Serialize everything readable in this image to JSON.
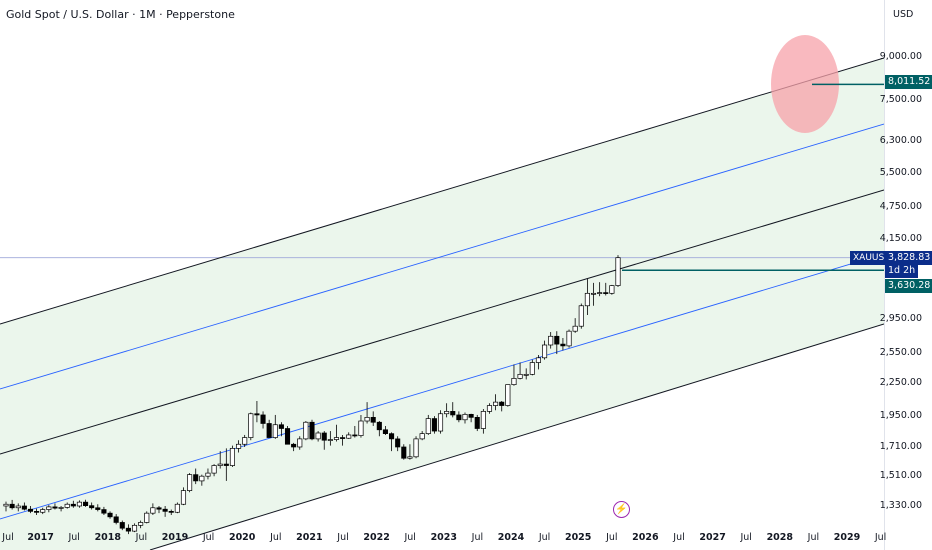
{
  "header": {
    "title": "Gold Spot / U.S. Dollar · 1M · Pepperstone"
  },
  "price_axis": {
    "currency": "USD",
    "ticks": [
      {
        "label": "9,000.00",
        "value": 9000
      },
      {
        "label": "7,500.00",
        "value": 7500
      },
      {
        "label": "6,300.00",
        "value": 6300
      },
      {
        "label": "5,500.00",
        "value": 5500
      },
      {
        "label": "4,750.00",
        "value": 4750
      },
      {
        "label": "4,150.00",
        "value": 4150
      },
      {
        "label": "2,950.00",
        "value": 2950
      },
      {
        "label": "2,550.00",
        "value": 2550
      },
      {
        "label": "2,250.00",
        "value": 2250
      },
      {
        "label": "1,950.00",
        "value": 1950
      },
      {
        "label": "1,710.00",
        "value": 1710
      },
      {
        "label": "1,510.00",
        "value": 1510
      },
      {
        "label": "1,330.00",
        "value": 1330
      }
    ],
    "scale": "log"
  },
  "time_axis": {
    "ticks": [
      {
        "label": "Jul",
        "year": false
      },
      {
        "label": "2017",
        "year": true
      },
      {
        "label": "Jul",
        "year": false
      },
      {
        "label": "2018",
        "year": true
      },
      {
        "label": "Jul",
        "year": false
      },
      {
        "label": "2019",
        "year": true
      },
      {
        "label": "Jul",
        "year": false
      },
      {
        "label": "2020",
        "year": true
      },
      {
        "label": "Jul",
        "year": false
      },
      {
        "label": "2021",
        "year": true
      },
      {
        "label": "Jul",
        "year": false
      },
      {
        "label": "2022",
        "year": true
      },
      {
        "label": "Jul",
        "year": false
      },
      {
        "label": "2023",
        "year": true
      },
      {
        "label": "Jul",
        "year": false
      },
      {
        "label": "2024",
        "year": true
      },
      {
        "label": "Jul",
        "year": false
      },
      {
        "label": "2025",
        "year": true
      },
      {
        "label": "Jul",
        "year": false
      },
      {
        "label": "2026",
        "year": true
      },
      {
        "label": "Jul",
        "year": false
      },
      {
        "label": "2027",
        "year": true
      },
      {
        "label": "Jul",
        "year": false
      },
      {
        "label": "2028",
        "year": true
      },
      {
        "label": "Jul",
        "year": false
      },
      {
        "label": "2029",
        "year": true
      },
      {
        "label": "Jul",
        "year": false
      }
    ]
  },
  "badges": {
    "target_price": "8,011.52",
    "ticker": "XAUUSD",
    "last_price": "3,828.83",
    "countdown": "1d 2h",
    "level_price": "3,630.28"
  },
  "colors": {
    "channel_fill": "#e8f5e9",
    "channel_line": "#131722",
    "mid_line": "#2962ff",
    "target_circle": "#f7a1aa",
    "teal_badge": "#006064",
    "ticker_bg": "#0b2d8a",
    "up_candle": "#ffffff",
    "down_candle": "#000000"
  },
  "icons": {
    "flash": "lightning-bolt-icon"
  },
  "chart_data": {
    "type": "candlestick",
    "title": "Gold Spot / U.S. Dollar · 1M · Pepperstone",
    "ylabel": "USD",
    "ylim": [
      1300,
      9600
    ],
    "scale": "log",
    "channel": {
      "lines": [
        "upper",
        "upper-mid",
        "center",
        "lower-mid",
        "lower"
      ],
      "target_level": 8011.52,
      "last_price": 3828.83,
      "horizontal_level": 3630.28
    },
    "series": [
      {
        "values": [
          [
            1330,
            1355,
            1300,
            1340
          ],
          [
            1340,
            1365,
            1310,
            1320
          ],
          [
            1320,
            1345,
            1300,
            1330
          ],
          [
            1330,
            1350,
            1305,
            1312
          ],
          [
            1312,
            1330,
            1290,
            1300
          ],
          [
            1300,
            1315,
            1280,
            1295
          ],
          [
            1295,
            1320,
            1285,
            1310
          ],
          [
            1310,
            1335,
            1295,
            1325
          ],
          [
            1325,
            1345,
            1310,
            1318
          ],
          [
            1318,
            1330,
            1300,
            1322
          ],
          [
            1322,
            1350,
            1315,
            1340
          ],
          [
            1340,
            1360,
            1320,
            1330
          ],
          [
            1330,
            1362,
            1320,
            1352
          ],
          [
            1352,
            1366,
            1325,
            1332
          ],
          [
            1332,
            1350,
            1310,
            1320
          ],
          [
            1320,
            1340,
            1300,
            1310
          ],
          [
            1310,
            1325,
            1280,
            1290
          ],
          [
            1290,
            1300,
            1260,
            1270
          ],
          [
            1270,
            1285,
            1230,
            1240
          ],
          [
            1240,
            1250,
            1200,
            1210
          ],
          [
            1210,
            1230,
            1180,
            1195
          ],
          [
            1195,
            1235,
            1190,
            1225
          ],
          [
            1225,
            1250,
            1210,
            1240
          ],
          [
            1240,
            1300,
            1235,
            1290
          ],
          [
            1290,
            1345,
            1280,
            1320
          ],
          [
            1320,
            1330,
            1290,
            1312
          ],
          [
            1312,
            1330,
            1270,
            1300
          ],
          [
            1300,
            1310,
            1280,
            1295
          ],
          [
            1295,
            1350,
            1290,
            1340
          ],
          [
            1340,
            1440,
            1335,
            1420
          ],
          [
            1420,
            1530,
            1410,
            1520
          ],
          [
            1520,
            1560,
            1460,
            1480
          ],
          [
            1480,
            1520,
            1450,
            1510
          ],
          [
            1510,
            1560,
            1490,
            1530
          ],
          [
            1530,
            1590,
            1510,
            1580
          ],
          [
            1580,
            1680,
            1560,
            1590
          ],
          [
            1590,
            1700,
            1480,
            1580
          ],
          [
            1580,
            1720,
            1570,
            1700
          ],
          [
            1700,
            1760,
            1670,
            1730
          ],
          [
            1730,
            1800,
            1710,
            1780
          ],
          [
            1780,
            1980,
            1760,
            1970
          ],
          [
            1970,
            2080,
            1900,
            1960
          ],
          [
            1960,
            1990,
            1850,
            1890
          ],
          [
            1890,
            1920,
            1780,
            1780
          ],
          [
            1780,
            1960,
            1770,
            1880
          ],
          [
            1880,
            1900,
            1790,
            1850
          ],
          [
            1850,
            1870,
            1760,
            1730
          ],
          [
            1730,
            1740,
            1680,
            1710
          ],
          [
            1710,
            1790,
            1690,
            1770
          ],
          [
            1770,
            1910,
            1760,
            1900
          ],
          [
            1900,
            1920,
            1760,
            1770
          ],
          [
            1770,
            1830,
            1750,
            1815
          ],
          [
            1815,
            1830,
            1690,
            1760
          ],
          [
            1760,
            1830,
            1720,
            1765
          ],
          [
            1765,
            1880,
            1750,
            1780
          ],
          [
            1780,
            1800,
            1720,
            1775
          ],
          [
            1775,
            1820,
            1770,
            1800
          ],
          [
            1800,
            1870,
            1780,
            1795
          ],
          [
            1795,
            1960,
            1780,
            1910
          ],
          [
            1910,
            2070,
            1890,
            1940
          ],
          [
            1940,
            1990,
            1870,
            1900
          ],
          [
            1900,
            1910,
            1790,
            1840
          ],
          [
            1840,
            1870,
            1800,
            1810
          ],
          [
            1810,
            1820,
            1680,
            1770
          ],
          [
            1770,
            1790,
            1680,
            1710
          ],
          [
            1710,
            1730,
            1620,
            1630
          ],
          [
            1630,
            1730,
            1620,
            1640
          ],
          [
            1640,
            1790,
            1630,
            1770
          ],
          [
            1770,
            1830,
            1760,
            1810
          ],
          [
            1810,
            1960,
            1800,
            1930
          ],
          [
            1930,
            1950,
            1810,
            1830
          ],
          [
            1830,
            2000,
            1810,
            1970
          ],
          [
            1970,
            2060,
            1940,
            1990
          ],
          [
            1990,
            2070,
            1940,
            1960
          ],
          [
            1960,
            1990,
            1900,
            1920
          ],
          [
            1920,
            1980,
            1890,
            1965
          ],
          [
            1965,
            1970,
            1900,
            1940
          ],
          [
            1940,
            1960,
            1830,
            1850
          ],
          [
            1850,
            2010,
            1810,
            1990
          ],
          [
            1990,
            2060,
            1970,
            2040
          ],
          [
            2040,
            2140,
            2000,
            2070
          ],
          [
            2070,
            2080,
            1990,
            2040
          ],
          [
            2040,
            2200,
            2030,
            2230
          ],
          [
            2230,
            2430,
            2220,
            2290
          ],
          [
            2290,
            2450,
            2280,
            2330
          ],
          [
            2330,
            2390,
            2280,
            2330
          ],
          [
            2330,
            2480,
            2320,
            2450
          ],
          [
            2450,
            2530,
            2380,
            2500
          ],
          [
            2500,
            2690,
            2480,
            2640
          ],
          [
            2640,
            2790,
            2600,
            2740
          ],
          [
            2740,
            2800,
            2540,
            2650
          ],
          [
            2650,
            2720,
            2580,
            2630
          ],
          [
            2630,
            2820,
            2610,
            2800
          ],
          [
            2800,
            2960,
            2780,
            2860
          ],
          [
            2860,
            3150,
            2830,
            3120
          ],
          [
            3120,
            3500,
            3000,
            3290
          ],
          [
            3290,
            3440,
            3120,
            3290
          ],
          [
            3290,
            3450,
            3250,
            3300
          ],
          [
            3300,
            3440,
            3260,
            3290
          ],
          [
            3290,
            3410,
            3270,
            3400
          ],
          [
            3400,
            3870,
            3380,
            3828.83
          ]
        ]
      }
    ]
  }
}
